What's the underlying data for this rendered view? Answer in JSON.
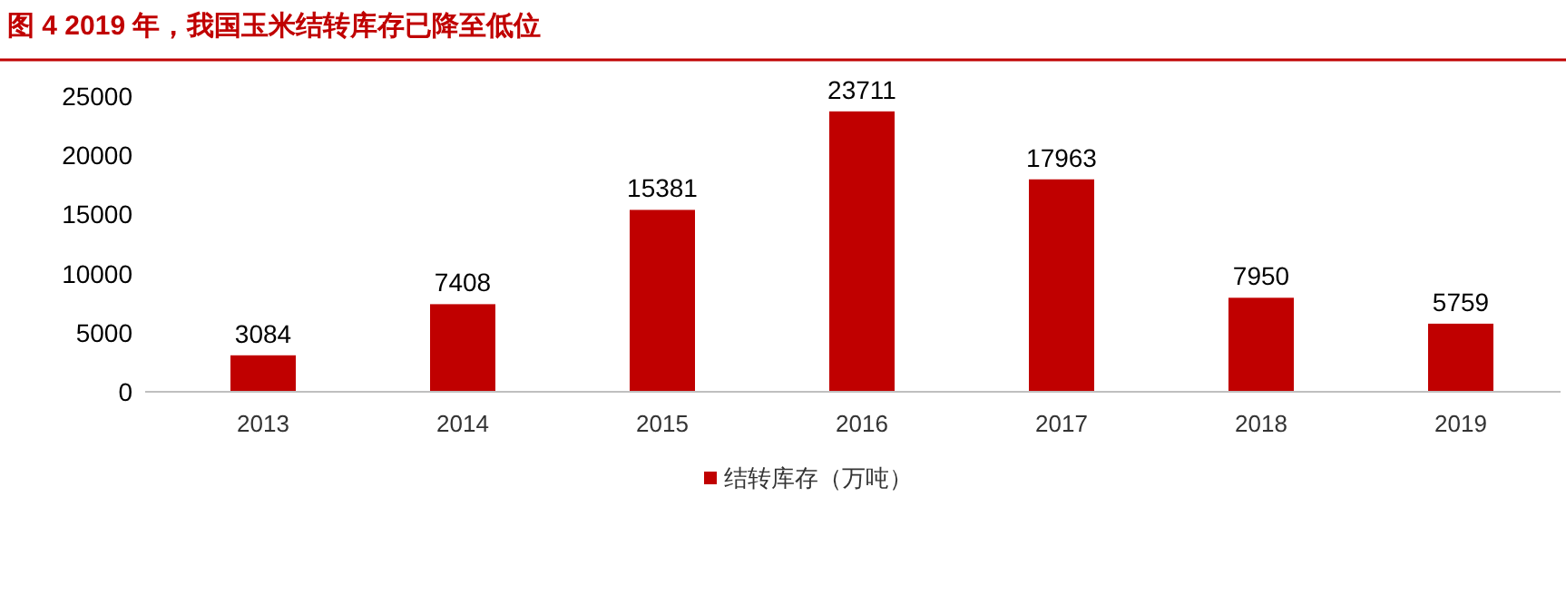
{
  "chart_data": {
    "type": "bar",
    "title": "图 4  2019 年，我国玉米结转库存已降至低位",
    "categories": [
      "2013",
      "2014",
      "2015",
      "2016",
      "2017",
      "2018",
      "2019"
    ],
    "series": [
      {
        "name": "结转库存（万吨）",
        "color": "#c00000",
        "values": [
          3084,
          7408,
          15381,
          23711,
          17963,
          7950,
          5759
        ]
      }
    ],
    "ylim": [
      0,
      25000
    ],
    "yticks": [
      0,
      5000,
      10000,
      15000,
      20000,
      25000
    ],
    "data_labels": true,
    "legend": "bottom",
    "grid": false
  }
}
